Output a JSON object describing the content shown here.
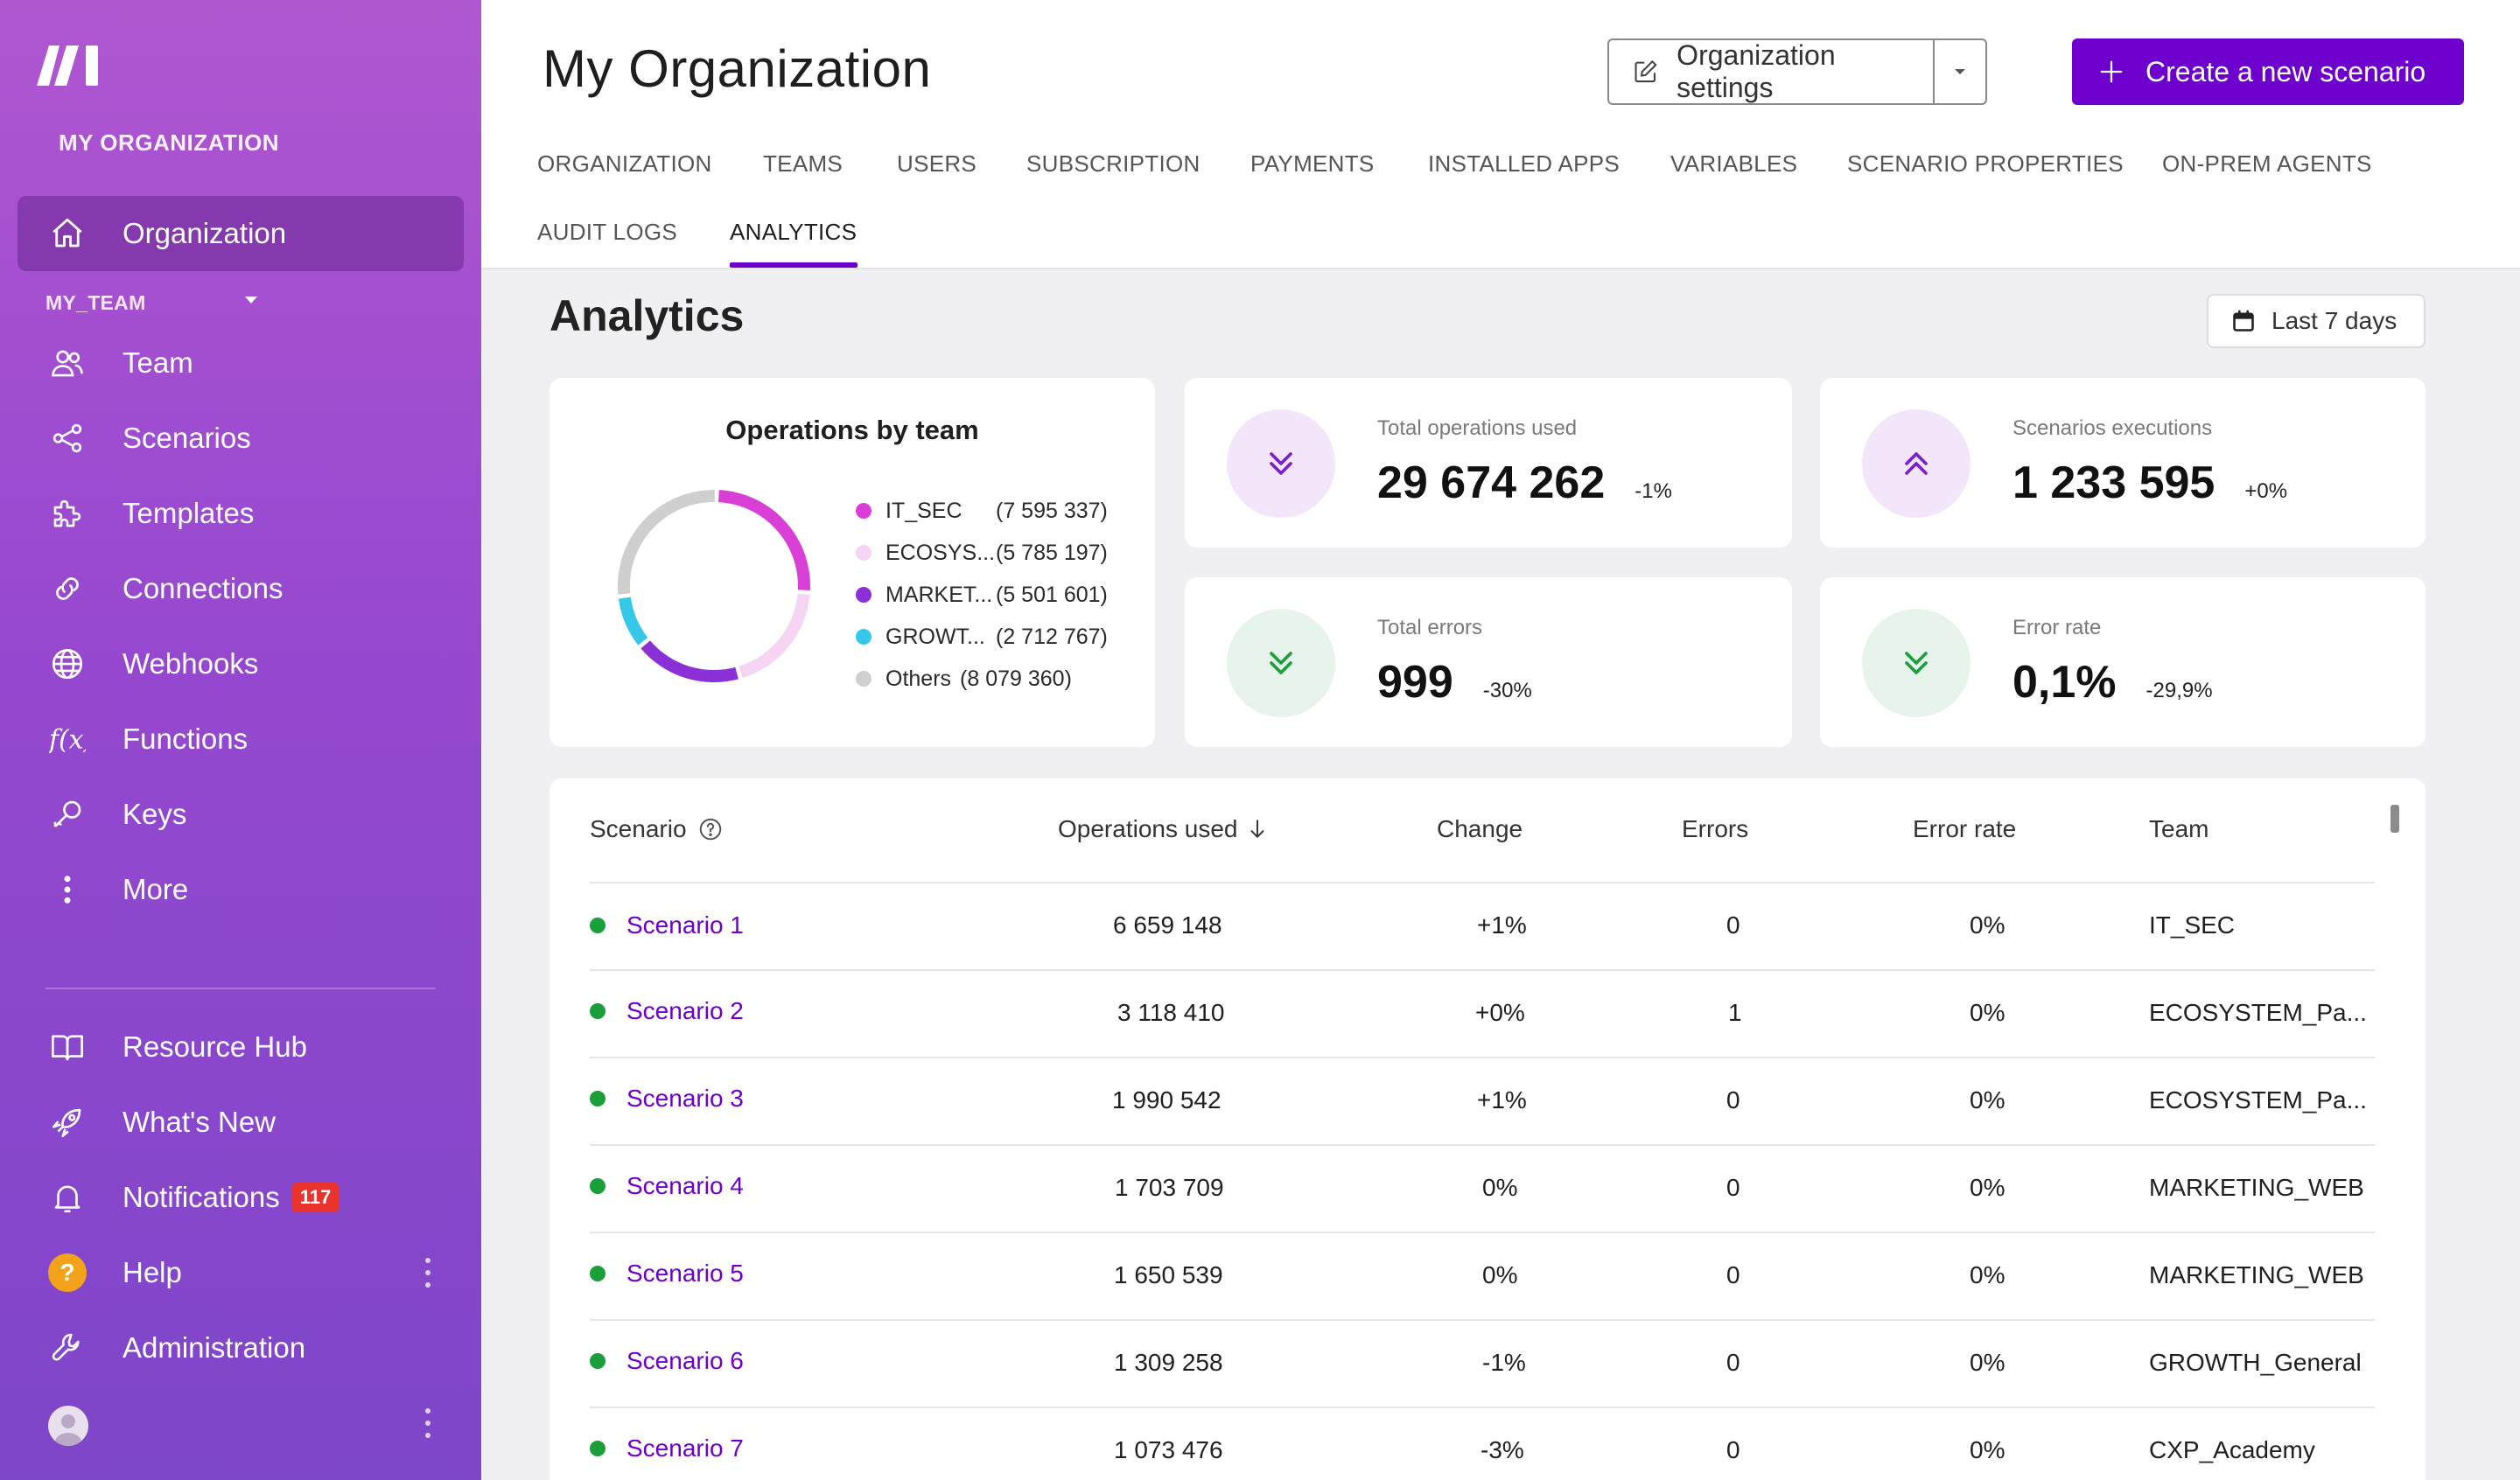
{
  "sidebar": {
    "org_label": "MY ORGANIZATION",
    "team_label": "MY_TEAM",
    "items": [
      {
        "label": "Organization",
        "icon": "home-icon"
      },
      {
        "label": "Team",
        "icon": "users-icon"
      },
      {
        "label": "Scenarios",
        "icon": "share-nodes-icon"
      },
      {
        "label": "Templates",
        "icon": "puzzle-icon"
      },
      {
        "label": "Connections",
        "icon": "link-icon"
      },
      {
        "label": "Webhooks",
        "icon": "globe-icon"
      },
      {
        "label": "Functions",
        "icon": "function-icon"
      },
      {
        "label": "Keys",
        "icon": "key-icon"
      },
      {
        "label": "More",
        "icon": "more-vertical-icon"
      }
    ],
    "bottom_items": [
      {
        "label": "Resource Hub",
        "icon": "book-icon"
      },
      {
        "label": "What's New",
        "icon": "rocket-icon"
      },
      {
        "label": "Notifications",
        "icon": "bell-icon",
        "badge": "117"
      },
      {
        "label": "Help",
        "icon": "help-icon",
        "glyph": "?"
      },
      {
        "label": "Administration",
        "icon": "wrench-icon"
      }
    ]
  },
  "header": {
    "title": "My Organization",
    "settings_button": "Organization settings",
    "create_button": "Create a new scenario",
    "tabs": [
      "ORGANIZATION",
      "TEAMS",
      "USERS",
      "SUBSCRIPTION",
      "PAYMENTS",
      "INSTALLED APPS",
      "VARIABLES",
      "SCENARIO PROPERTIES",
      "ON-PREM AGENTS",
      "AUDIT LOGS",
      "ANALYTICS"
    ],
    "active_tab": "ANALYTICS"
  },
  "analytics": {
    "title": "Analytics",
    "range_button": "Last 7 days",
    "donut": {
      "title": "Operations by team",
      "segments": [
        {
          "name": "IT_SEC",
          "value": "(7 595 337)",
          "amount": 7595337,
          "color": "#d93fd6"
        },
        {
          "name": "ECOSYS...",
          "value": "(5 785 197)",
          "amount": 5785197,
          "color": "#f5d4f4"
        },
        {
          "name": "MARKET...",
          "value": "(5 501 601)",
          "amount": 5501601,
          "color": "#8b2fd6"
        },
        {
          "name": "GROWT...",
          "value": "(2 712 767)",
          "amount": 2712767,
          "color": "#36c8e8"
        },
        {
          "name": "Others",
          "value": "(8 079 360)",
          "amount": 8079360,
          "color": "#cfcfcf"
        }
      ]
    },
    "kpis": [
      {
        "label": "Total operations used",
        "value": "29 674 262",
        "change": "-1%",
        "trend": "down"
      },
      {
        "label": "Scenarios executions",
        "value": "1 233 595",
        "change": "+0%",
        "trend": "up"
      },
      {
        "label": "Total errors",
        "value": "999",
        "change": "-30%",
        "trend": "down"
      },
      {
        "label": "Error rate",
        "value": "0,1%",
        "change": "-29,9%",
        "trend": "down"
      }
    ],
    "table": {
      "columns": [
        "Scenario",
        "Operations used",
        "Change",
        "Errors",
        "Error rate",
        "Team"
      ],
      "rows": [
        {
          "scenario": "Scenario 1",
          "ops": "6 659 148",
          "change": "+1%",
          "errors": "0",
          "rate": "0%",
          "team": "IT_SEC"
        },
        {
          "scenario": "Scenario 2",
          "ops": "3 118 410",
          "change": "+0%",
          "errors": "1",
          "rate": "0%",
          "team": "ECOSYSTEM_Pa..."
        },
        {
          "scenario": "Scenario 3",
          "ops": "1 990 542",
          "change": "+1%",
          "errors": "0",
          "rate": "0%",
          "team": "ECOSYSTEM_Pa..."
        },
        {
          "scenario": "Scenario 4",
          "ops": "1 703 709",
          "change": "0%",
          "errors": "0",
          "rate": "0%",
          "team": "MARKETING_WEB"
        },
        {
          "scenario": "Scenario 5",
          "ops": "1 650 539",
          "change": "0%",
          "errors": "0",
          "rate": "0%",
          "team": "MARKETING_WEB"
        },
        {
          "scenario": "Scenario 6",
          "ops": "1 309 258",
          "change": "-1%",
          "errors": "0",
          "rate": "0%",
          "team": "GROWTH_General"
        },
        {
          "scenario": "Scenario 7",
          "ops": "1 073 476",
          "change": "-3%",
          "errors": "0",
          "rate": "0%",
          "team": "CXP_Academy"
        }
      ]
    }
  },
  "colors": {
    "accent": "#6d00cc",
    "sidebar_top": "#b056d1",
    "sidebar_bottom": "#7e46c9",
    "status_ok": "#1a9f3b",
    "badge": "#e8342d"
  }
}
